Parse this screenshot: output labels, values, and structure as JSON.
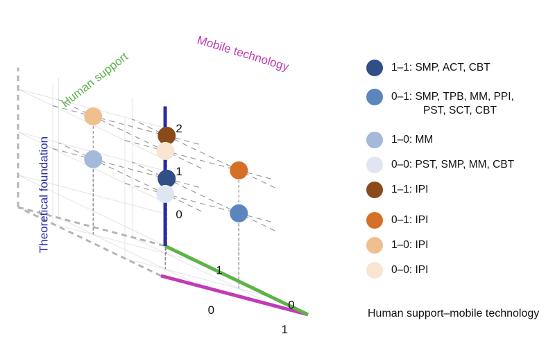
{
  "chart_data": {
    "type": "scatter",
    "axes": {
      "theoretical_foundation": {
        "title": "Theoretical foundation",
        "ticks": [
          "0",
          "1",
          "2"
        ],
        "color": "#2a2aa8"
      },
      "human_support": {
        "title": "Human support",
        "ticks": [
          "0",
          "1"
        ],
        "color": "#5db34a"
      },
      "mobile_technology": {
        "title": "Mobile technology",
        "ticks": [
          "0",
          "1"
        ],
        "color": "#c23bb5"
      }
    },
    "points": [
      {
        "human_support": 1,
        "mobile_technology": 1,
        "theory": 2,
        "color": "#8b4a1c"
      },
      {
        "human_support": 0,
        "mobile_technology": 1,
        "theory": 2,
        "color": "#d66f27"
      },
      {
        "human_support": 1,
        "mobile_technology": 0,
        "theory": 2,
        "color": "#f0bf8e"
      },
      {
        "human_support": 0,
        "mobile_technology": 0,
        "theory": 2,
        "color": "#f8e5d2"
      },
      {
        "human_support": 1,
        "mobile_technology": 1,
        "theory": 1,
        "color": "#2f4f86"
      },
      {
        "human_support": 0,
        "mobile_technology": 1,
        "theory": 1,
        "color": "#5a86bd"
      },
      {
        "human_support": 1,
        "mobile_technology": 0,
        "theory": 1,
        "color": "#a5b9da"
      },
      {
        "human_support": 0,
        "mobile_technology": 0,
        "theory": 1,
        "color": "#dfe6f2"
      }
    ],
    "legend": [
      {
        "label": "1–1: SMP, ACT, CBT",
        "color": "#2f4f86"
      },
      {
        "label": "0–1: SMP, TPB, MM, PPI,",
        "label2": "PST, SCT, CBT",
        "color": "#5a86bd"
      },
      {
        "label": "1–0: MM",
        "color": "#a5b9da"
      },
      {
        "label": "0–0: PST, SMP, MM, CBT",
        "color": "#dfe6f2"
      },
      {
        "label": "1–1: IPI",
        "color": "#8b4a1c"
      },
      {
        "label": "0–1: IPI",
        "color": "#d66f27"
      },
      {
        "label": "1–0: IPI",
        "color": "#f0bf8e"
      },
      {
        "label": "0–0: IPI",
        "color": "#f8e5d2"
      }
    ],
    "legend_title": "Human support–mobile technology",
    "grid": true,
    "legend_placement": "right"
  }
}
